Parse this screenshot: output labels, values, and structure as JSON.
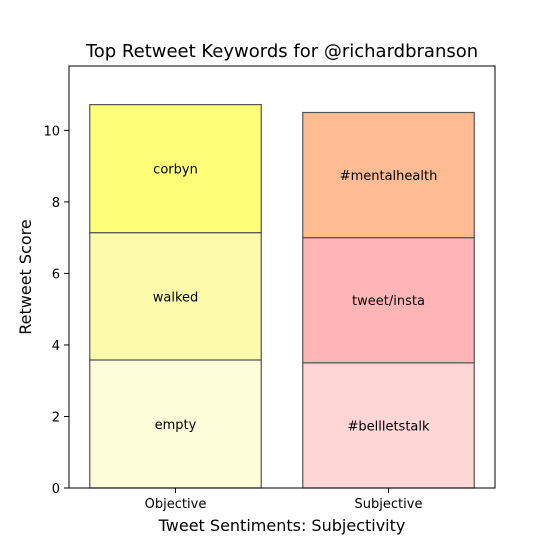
{
  "chart_data": {
    "type": "bar",
    "stacked": true,
    "title": "Top Retweet Keywords for @richardbranson",
    "xlabel": "Tweet Sentiments: Subjectivity",
    "ylabel": "Retweet Score",
    "categories": [
      "Objective",
      "Subjective"
    ],
    "ylim": [
      0,
      11.8
    ],
    "yticks": [
      0,
      2,
      4,
      6,
      8,
      10
    ],
    "grid": false,
    "stacks": [
      {
        "category": "Objective",
        "segments": [
          {
            "label": "empty",
            "value": 3.58,
            "color": "#fdfdd9"
          },
          {
            "label": "walked",
            "value": 3.56,
            "color": "#fbfbaa"
          },
          {
            "label": "corbyn",
            "value": 3.58,
            "color": "#ffff78"
          }
        ]
      },
      {
        "category": "Subjective",
        "segments": [
          {
            "label": "#bellletstalk",
            "value": 3.5,
            "color": "#ffd6d6"
          },
          {
            "label": "tweet/insta",
            "value": 3.5,
            "color": "#ffb5b5"
          },
          {
            "label": "#mentalhealth",
            "value": 3.5,
            "color": "#ffbc93"
          }
        ]
      }
    ]
  }
}
